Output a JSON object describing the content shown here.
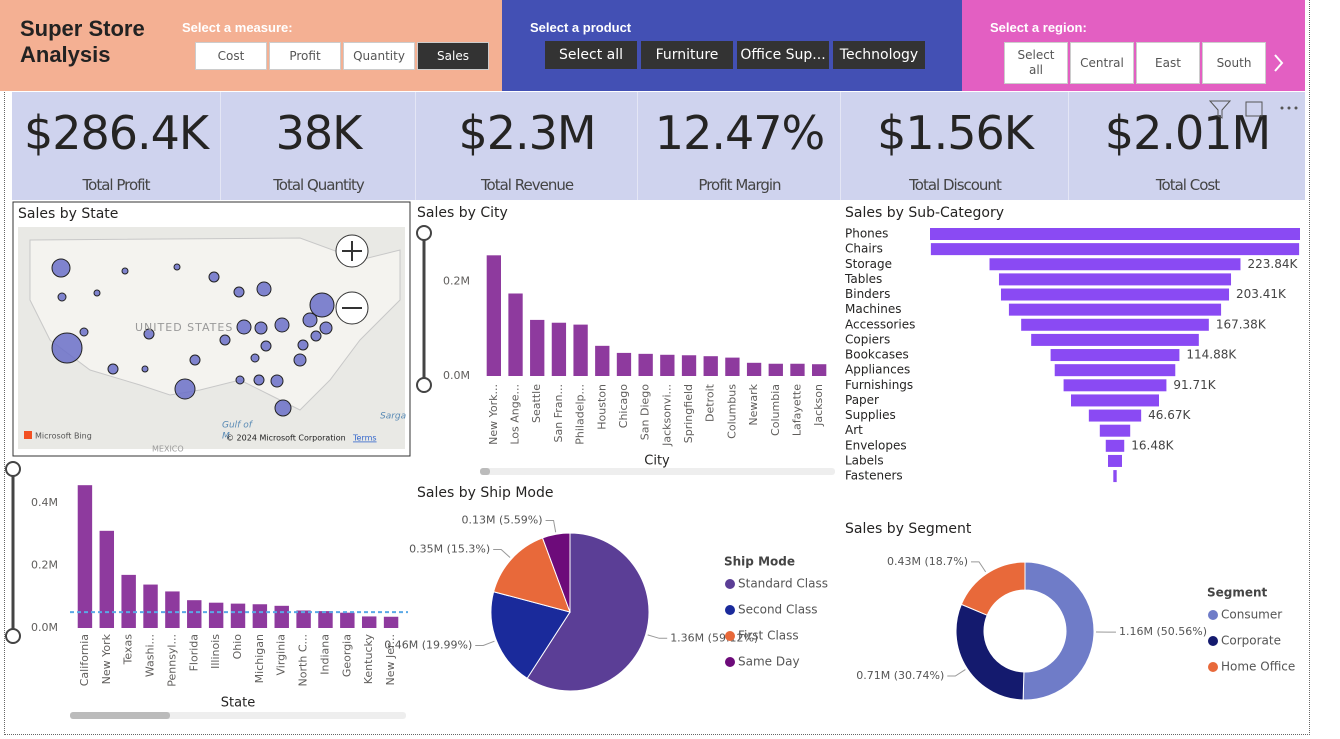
{
  "header": {
    "title": "Super Store Analysis"
  },
  "slicers": [
    {
      "label": "Select a measure:",
      "options": [
        "Cost",
        "Profit",
        "Quantity",
        "Sales"
      ],
      "selected": "Sales"
    },
    {
      "label": "Select a product",
      "options": [
        "Select all",
        "Furniture",
        "Office Sup...",
        "Technology"
      ]
    },
    {
      "label": "Select a region:",
      "options": [
        "Select all",
        "Central",
        "East",
        "South"
      ]
    }
  ],
  "kpis": [
    {
      "value": "$286.4K",
      "label": "Total Profit"
    },
    {
      "value": "38K",
      "label": "Total Quantity"
    },
    {
      "value": "$2.3M",
      "label": "Total Revenue"
    },
    {
      "value": "12.47%",
      "label": "Profit Margin"
    },
    {
      "value": "$1.56K",
      "label": "Total Discount"
    },
    {
      "value": "$2.01M",
      "label": "Total Cost"
    }
  ],
  "map": {
    "title": "Sales by State",
    "country": "UNITED STATES",
    "gulf": "Gulf of",
    "gulf2": "M",
    "mexico": "MEXICO",
    "sea": "Sarga",
    "bing": "Microsoft Bing",
    "credit": "© 2024 Microsoft Corporation",
    "terms": "Terms"
  },
  "chart_data": [
    {
      "type": "bar",
      "title": "Sales by City",
      "x_label": "City",
      "color": "#8e3a9e",
      "categories": [
        "New York...",
        "Los Ange...",
        "Seattle",
        "San Fran...",
        "Philadelp...",
        "Houston",
        "Chicago",
        "San Diego",
        "Jacksonvi...",
        "Springfield",
        "Detroit",
        "Columbus",
        "Newark",
        "Columbia",
        "Lafayette",
        "Jackson"
      ],
      "values": [
        0.256,
        0.175,
        0.119,
        0.113,
        0.109,
        0.064,
        0.049,
        0.047,
        0.045,
        0.044,
        0.042,
        0.039,
        0.028,
        0.026,
        0.026,
        0.025
      ],
      "ylim": [
        0,
        0.28
      ],
      "yticks": [
        {
          "value": 0,
          "label": "0.0M"
        },
        {
          "value": 0.2,
          "label": "0.2M"
        }
      ],
      "grid": false
    },
    {
      "type": "bar",
      "x_label": "State",
      "color": "#8e3a9e",
      "categories": [
        "California",
        "New York",
        "Texas",
        "Washi...",
        "Pennsyl...",
        "Florida",
        "Illinois",
        "Ohio",
        "Michigan",
        "Virginia",
        "North C...",
        "Indiana",
        "Georgia",
        "Kentucky",
        "New Jer..."
      ],
      "values": [
        0.457,
        0.311,
        0.17,
        0.139,
        0.117,
        0.089,
        0.081,
        0.078,
        0.076,
        0.071,
        0.056,
        0.054,
        0.049,
        0.037,
        0.036
      ],
      "reference_value": 0.051,
      "reference_color": "#5aa9e6",
      "ylim": [
        0,
        0.48
      ],
      "yticks": [
        {
          "value": 0,
          "label": "0.0M"
        },
        {
          "value": 0.2,
          "label": "0.2M"
        },
        {
          "value": 0.4,
          "label": "0.4M"
        }
      ],
      "grid": false
    },
    {
      "type": "funnel",
      "title": "Sales by Sub-Category",
      "color": "#8a4af3",
      "categories": [
        "Phones",
        "Chairs",
        "Storage",
        "Tables",
        "Binders",
        "Machines",
        "Accessories",
        "Copiers",
        "Bookcases",
        "Appliances",
        "Furnishings",
        "Paper",
        "Supplies",
        "Art",
        "Envelopes",
        "Labels",
        "Fasteners"
      ],
      "values": [
        330.01,
        328.45,
        223.84,
        206.97,
        203.41,
        189.24,
        167.38,
        149.53,
        114.88,
        107.53,
        91.71,
        78.48,
        46.67,
        27.12,
        16.48,
        12.49,
        3.02
      ],
      "value_labels": [
        null,
        null,
        "223.84K",
        null,
        "203.41K",
        null,
        "167.38K",
        null,
        "114.88K",
        null,
        "91.71K",
        null,
        "46.67K",
        null,
        "16.48K",
        null,
        null
      ]
    },
    {
      "type": "pie",
      "title": "Sales by Ship Mode",
      "legend_title": "Ship Mode",
      "categories": [
        "Standard Class",
        "Second Class",
        "First Class",
        "Same Day"
      ],
      "values": [
        1.36,
        0.46,
        0.35,
        0.13
      ],
      "value_labels": [
        "1.36M (59.12%)",
        "0.46M (19.99%)",
        "0.35M (15.3%)",
        "0.13M (5.59%)"
      ],
      "colors": [
        "#5b3e96",
        "#1a2a9b",
        "#e8693a",
        "#6d0b7a"
      ]
    },
    {
      "type": "donut",
      "title": "Sales by Segment",
      "legend_title": "Segment",
      "categories": [
        "Consumer",
        "Corporate",
        "Home Office"
      ],
      "values": [
        1.16,
        0.71,
        0.43
      ],
      "value_labels": [
        "1.16M (50.56%)",
        "0.71M (30.74%)",
        "0.43M (18.7%)"
      ],
      "colors": [
        "#6f7cc8",
        "#141a6e",
        "#e8693a"
      ]
    }
  ]
}
